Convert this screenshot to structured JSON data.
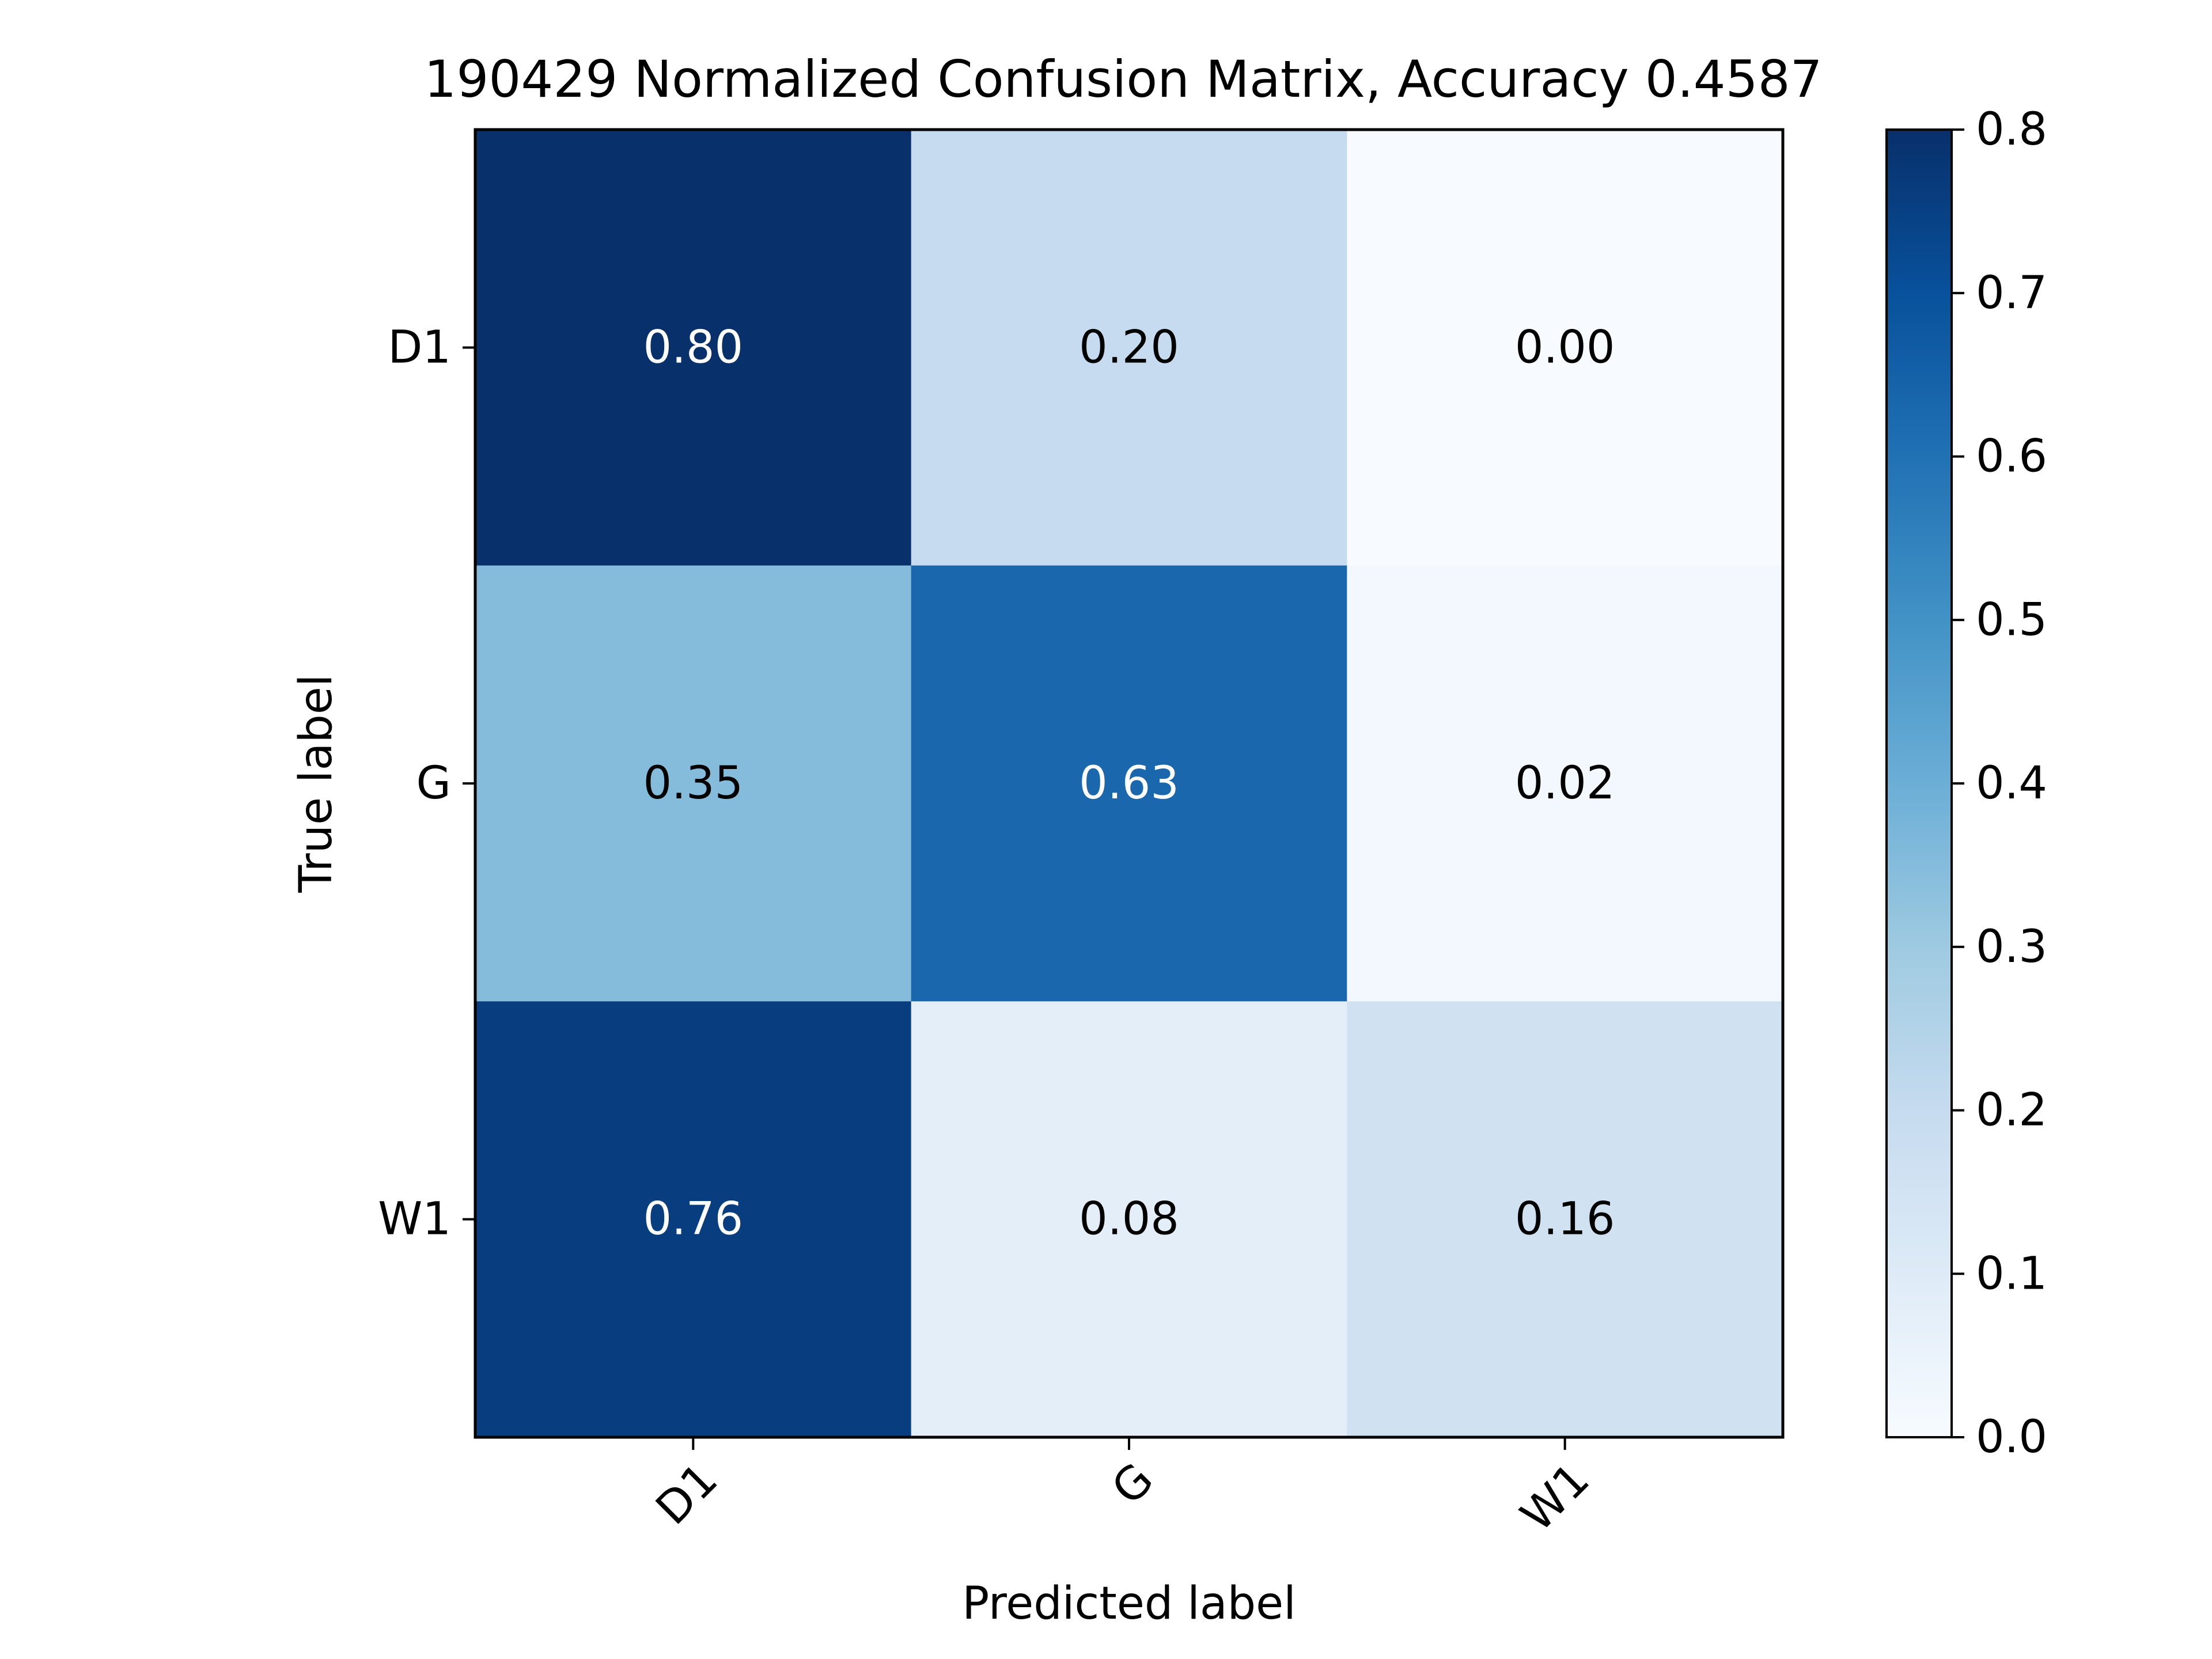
{
  "chart_data": {
    "type": "heatmap",
    "title": "190429 Normalized Confusion Matrix, Accuracy 0.4587",
    "xlabel": "Predicted label",
    "ylabel": "True label",
    "x_categories": [
      "D1",
      "G",
      "W1"
    ],
    "y_categories": [
      "D1",
      "G",
      "W1"
    ],
    "values": [
      [
        0.8,
        0.2,
        0.0
      ],
      [
        0.35,
        0.63,
        0.02
      ],
      [
        0.76,
        0.08,
        0.16
      ]
    ],
    "cell_labels": [
      [
        "0.80",
        "0.20",
        "0.00"
      ],
      [
        "0.35",
        "0.63",
        "0.02"
      ],
      [
        "0.76",
        "0.08",
        "0.16"
      ]
    ],
    "colormap": "Blues",
    "color_range": [
      0.0,
      0.8
    ],
    "colorbar_ticks": [
      "0.0",
      "0.1",
      "0.2",
      "0.3",
      "0.4",
      "0.5",
      "0.6",
      "0.7",
      "0.8"
    ],
    "x_tick_rotation": "45",
    "grid": false
  }
}
